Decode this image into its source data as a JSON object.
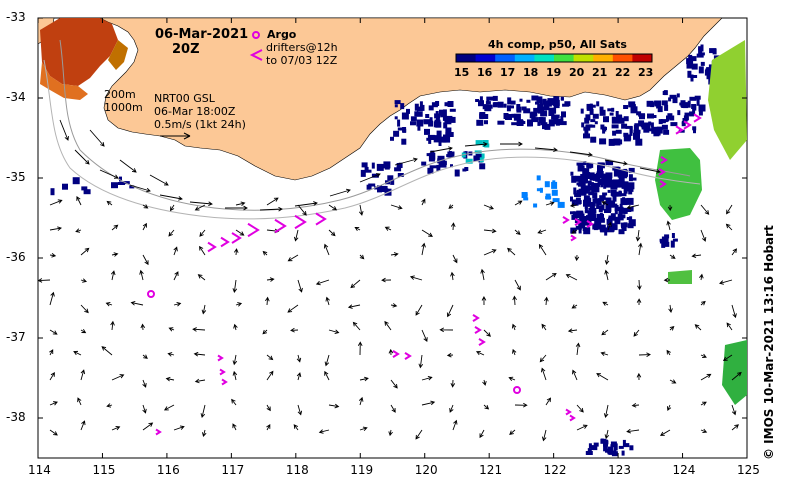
{
  "header": {
    "date": "06-Mar-2021",
    "time": "20Z",
    "model": "NRT00 GSL",
    "model_time": "06-Mar 18:00Z",
    "scale_text": "0.5m/s (1kt 24h)",
    "isobaths": [
      "200m",
      "1000m"
    ]
  },
  "legend": {
    "argo_label": "Argo",
    "drifters_line1": "drifters@12h",
    "drifters_line2": "to 07/03 12Z",
    "argo_color": "#e000e0"
  },
  "colorbar": {
    "title": "4h comp, p50, All Sats",
    "ticks": [
      "15",
      "16",
      "17",
      "18",
      "19",
      "20",
      "21",
      "22",
      "23"
    ],
    "colors": [
      "#000080",
      "#0000d0",
      "#0060ff",
      "#00b0ff",
      "#00e0c0",
      "#40e040",
      "#c0e000",
      "#ffb000",
      "#ff5000",
      "#c00000"
    ]
  },
  "axes": {
    "x_ticks": [
      "114",
      "115",
      "116",
      "117",
      "118",
      "119",
      "120",
      "121",
      "122",
      "123",
      "124",
      "125"
    ],
    "y_ticks": [
      "-33",
      "-34",
      "-35",
      "-36",
      "-37",
      "-38"
    ],
    "xlim": [
      114,
      125
    ],
    "ylim": [
      -38.5,
      -33
    ]
  },
  "credit": "© IMOS 10-Mar-2021 13:16 Hobart",
  "colors": {
    "land": "#fcc896",
    "sst_cold": "#000080",
    "drifter": "#e000e0"
  }
}
